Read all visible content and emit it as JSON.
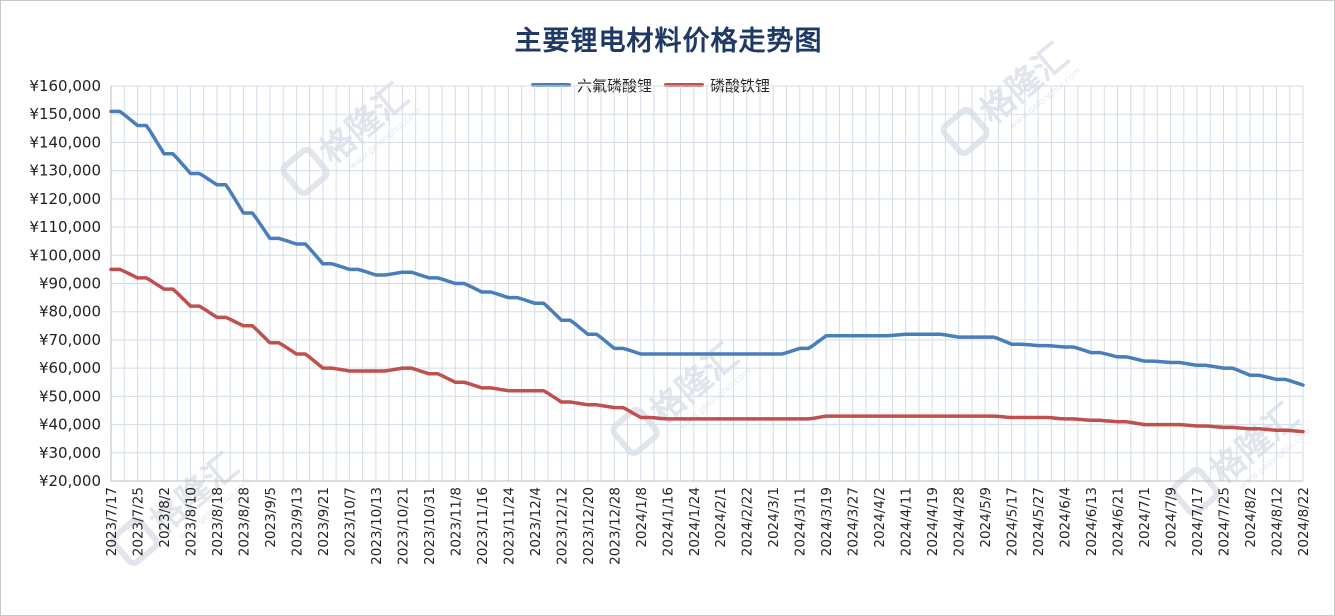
{
  "watermark": "格隆汇",
  "watermark_sub": "www.gelonghui.com",
  "chart_data": {
    "type": "line",
    "title": "主要锂电材料价格走势图",
    "ylim": [
      20000,
      160000
    ],
    "yticks": [
      20000,
      30000,
      40000,
      50000,
      60000,
      70000,
      80000,
      90000,
      100000,
      110000,
      120000,
      130000,
      140000,
      150000,
      160000
    ],
    "ytick_labels": [
      "¥20,000",
      "¥30,000",
      "¥40,000",
      "¥50,000",
      "¥60,000",
      "¥70,000",
      "¥80,000",
      "¥90,000",
      "¥100,000",
      "¥110,000",
      "¥120,000",
      "¥130,000",
      "¥140,000",
      "¥150,000",
      "¥160,000"
    ],
    "x_tick_labels": [
      "2023/7/17",
      "2023/7/25",
      "2023/8/2",
      "2023/8/10",
      "2023/8/18",
      "2023/8/28",
      "2023/9/5",
      "2023/9/13",
      "2023/9/21",
      "2023/10/7",
      "2023/10/13",
      "2023/10/21",
      "2023/10/31",
      "2023/11/8",
      "2023/11/16",
      "2023/11/24",
      "2023/12/4",
      "2023/12/12",
      "2023/12/20",
      "2023/12/28",
      "2024/1/8",
      "2024/1/16",
      "2024/1/24",
      "2024/2/1",
      "2024/2/22",
      "2024/3/1",
      "2024/3/11",
      "2024/3/19",
      "2024/3/27",
      "2024/4/2",
      "2024/4/11",
      "2024/4/19",
      "2024/4/28",
      "2024/5/9",
      "2024/5/17",
      "2024/5/27",
      "2024/6/4",
      "2024/6/13",
      "2024/6/21",
      "2024/7/1",
      "2024/7/9",
      "2024/7/17",
      "2024/7/25",
      "2024/8/2",
      "2024/8/12",
      "2024/8/22"
    ],
    "x_count": 271,
    "legend_position": "top",
    "grid": true,
    "series": [
      {
        "name": "六氟磷酸锂",
        "color": "#4a7ebb",
        "values_at_ticks": [
          151000,
          146000,
          136000,
          129000,
          125000,
          115000,
          106000,
          104000,
          97000,
          95000,
          93000,
          94000,
          92000,
          90000,
          87000,
          85000,
          83000,
          77000,
          72000,
          67000,
          65000,
          65000,
          65000,
          65000,
          65000,
          65000,
          67000,
          71500,
          71500,
          71500,
          72000,
          72000,
          71000,
          71000,
          68500,
          68000,
          67500,
          65500,
          64000,
          62500,
          62000,
          61000,
          60000,
          57500,
          56000,
          54000
        ]
      },
      {
        "name": "磷酸铁锂",
        "color": "#c0504d",
        "values_at_ticks": [
          95000,
          92000,
          88000,
          82000,
          78000,
          75000,
          69000,
          65000,
          60000,
          59000,
          59000,
          60000,
          58000,
          55000,
          53000,
          52000,
          52000,
          48000,
          47000,
          46000,
          42500,
          42000,
          42000,
          42000,
          42000,
          42000,
          42000,
          43000,
          43000,
          43000,
          43000,
          43000,
          43000,
          43000,
          42500,
          42500,
          42000,
          41500,
          41000,
          40000,
          40000,
          39500,
          39000,
          38500,
          38000,
          37500
        ]
      }
    ]
  }
}
